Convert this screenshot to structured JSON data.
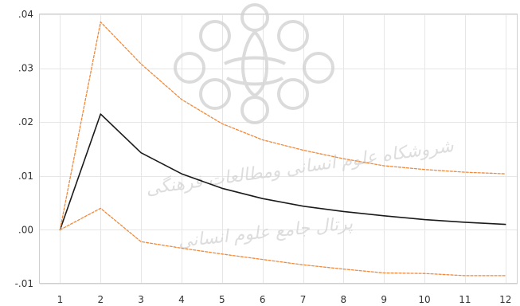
{
  "chart_data": {
    "type": "line",
    "title": "",
    "xlabel": "",
    "ylabel": "",
    "x": [
      1,
      2,
      3,
      4,
      5,
      6,
      7,
      8,
      9,
      10,
      11,
      12
    ],
    "xlim": [
      0.5,
      12.3
    ],
    "ylim": [
      -0.01,
      0.04
    ],
    "x_ticks": [
      "1",
      "2",
      "3",
      "4",
      "5",
      "6",
      "7",
      "8",
      "9",
      "10",
      "11",
      "12"
    ],
    "y_ticks": [
      {
        "value": 0.04,
        "label": ".04"
      },
      {
        "value": 0.03,
        "label": ".03"
      },
      {
        "value": 0.02,
        "label": ".02"
      },
      {
        "value": 0.01,
        "label": ".01"
      },
      {
        "value": 0.0,
        "label": ".00"
      },
      {
        "value": -0.01,
        "label": "-.01"
      }
    ],
    "grid": true,
    "series": [
      {
        "role": "response",
        "values": [
          0.0,
          0.0215,
          0.0143,
          0.0104,
          0.0077,
          0.0058,
          0.0044,
          0.0034,
          0.0026,
          0.0019,
          0.0014,
          0.001
        ],
        "color": "#1a1a1a",
        "style": "solid"
      },
      {
        "role": "upper-band",
        "values": [
          0.0,
          0.0386,
          0.0308,
          0.0242,
          0.0197,
          0.0167,
          0.0148,
          0.0132,
          0.0119,
          0.0112,
          0.0107,
          0.0104
        ],
        "color": "#f08a3c",
        "style": "dashed"
      },
      {
        "role": "lower-band",
        "values": [
          0.0,
          0.004,
          -0.0022,
          -0.0034,
          -0.0045,
          -0.0055,
          -0.0065,
          -0.0073,
          -0.008,
          -0.0081,
          -0.0085,
          -0.0085
        ],
        "color": "#f08a3c",
        "style": "dashed"
      }
    ]
  },
  "colors": {
    "grid": "#e6e6e6",
    "frame": "#cfcfcf",
    "watermark": "#d0d0d0"
  }
}
